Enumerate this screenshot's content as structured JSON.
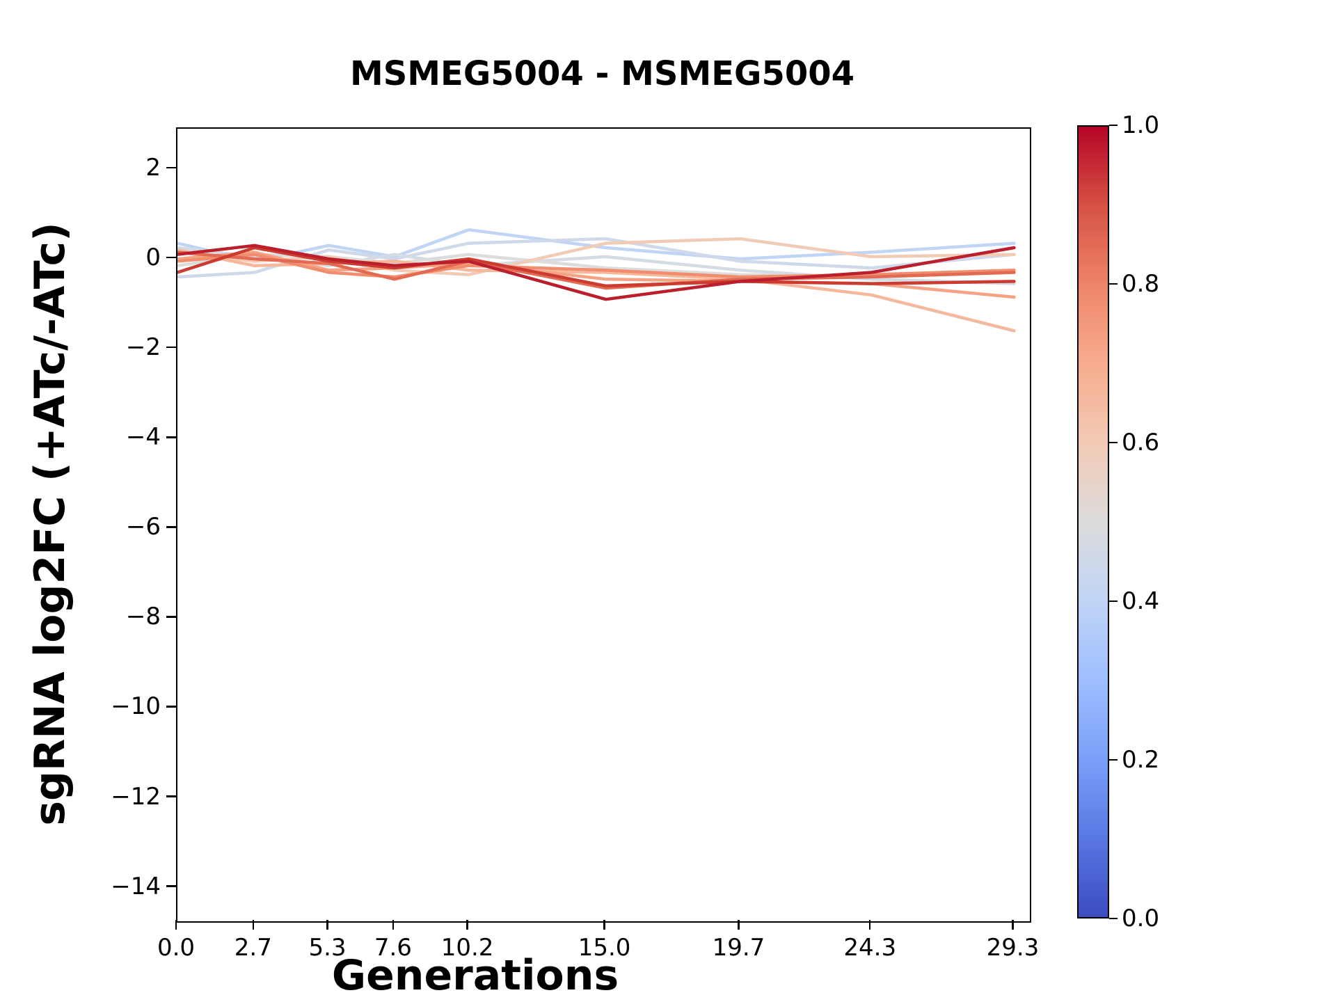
{
  "figure": {
    "title": "MSMEG5004 - MSMEG5004",
    "xlabel": "Generations",
    "ylabel": "sgRNA log2FC (+ATc/-ATc)"
  },
  "chart_data": {
    "type": "line",
    "title": "MSMEG5004 - MSMEG5004",
    "xlabel": "Generations",
    "ylabel": "sgRNA log2FC (+ATc/-ATc)",
    "x": [
      0.0,
      2.7,
      5.3,
      7.6,
      10.2,
      15.0,
      19.7,
      24.3,
      29.3
    ],
    "xlim": [
      0,
      29.85
    ],
    "ylim": [
      -14.75,
      2.9
    ],
    "xticks": {
      "values": [
        0.0,
        2.7,
        5.3,
        7.6,
        10.2,
        15.0,
        19.7,
        24.3,
        29.3
      ],
      "labels": [
        "0.0",
        "2.7",
        "5.3",
        "7.6",
        "10.2",
        "15.0",
        "19.7",
        "24.3",
        "29.3"
      ]
    },
    "yticks": {
      "values": [
        2,
        0,
        -2,
        -4,
        -6,
        -8,
        -10,
        -12,
        -14
      ],
      "labels": [
        "2",
        "0",
        "−2",
        "−4",
        "−6",
        "−8",
        "−10",
        "−12",
        "−14"
      ]
    },
    "grid": false,
    "series": [
      {
        "c": 0.4,
        "color": "#c0d4f5",
        "values": [
          0.35,
          -0.05,
          0.3,
          0.05,
          0.65,
          0.25,
          0.0,
          0.15,
          0.35
        ]
      },
      {
        "c": 0.44,
        "color": "#cfd9ea",
        "values": [
          -0.4,
          -0.3,
          0.2,
          0.0,
          0.35,
          0.45,
          -0.05,
          -0.2,
          0.1
        ]
      },
      {
        "c": 0.46,
        "color": "#d5dbe4",
        "values": [
          0.25,
          0.05,
          -0.15,
          0.1,
          -0.15,
          0.05,
          -0.25,
          -0.45,
          -0.55
        ]
      },
      {
        "c": 0.5,
        "color": "#dddcdc",
        "values": [
          -0.15,
          0.1,
          0.05,
          -0.1,
          0.1,
          -0.2,
          -0.35,
          -0.4,
          -0.3
        ]
      },
      {
        "c": 0.6,
        "color": "#f2cbb7",
        "values": [
          0.15,
          -0.05,
          0.05,
          -0.25,
          -0.35,
          0.35,
          0.45,
          0.05,
          0.1
        ]
      },
      {
        "c": 0.66,
        "color": "#f7b79b",
        "values": [
          0.2,
          -0.15,
          -0.1,
          -0.05,
          -0.25,
          -0.3,
          -0.45,
          -0.8,
          -1.6
        ]
      },
      {
        "c": 0.72,
        "color": "#f6a385",
        "values": [
          0.0,
          0.15,
          -0.25,
          -0.2,
          -0.1,
          -0.45,
          -0.5,
          -0.55,
          -0.85
        ]
      },
      {
        "c": 0.78,
        "color": "#f18d6f",
        "values": [
          -0.05,
          0.1,
          -0.3,
          -0.4,
          -0.15,
          -0.25,
          -0.4,
          -0.35,
          -0.25
        ]
      },
      {
        "c": 0.85,
        "color": "#e26952",
        "values": [
          0.15,
          0.0,
          -0.1,
          -0.45,
          -0.05,
          -0.65,
          -0.45,
          -0.4,
          -0.3
        ]
      },
      {
        "c": 0.92,
        "color": "#cb3b2f",
        "values": [
          -0.3,
          0.25,
          -0.05,
          -0.2,
          0.0,
          -0.6,
          -0.5,
          -0.55,
          -0.5
        ]
      },
      {
        "c": 0.97,
        "color": "#bc1f2c",
        "values": [
          0.1,
          0.3,
          0.0,
          -0.15,
          -0.05,
          -0.9,
          -0.5,
          -0.3,
          0.25
        ]
      }
    ],
    "colorbar": {
      "ticks": [
        "1.0",
        "0.8",
        "0.6",
        "0.4",
        "0.2",
        "0.0"
      ],
      "colormap": "coolwarm",
      "stops_top_to_bottom": [
        "#b40426",
        "#d65244",
        "#ee8468",
        "#f7ac8e",
        "#f2cab5",
        "#dddcdc",
        "#c0d4f5",
        "#9ebeff",
        "#7b9ff9",
        "#5977e3",
        "#3b4cc0"
      ]
    }
  }
}
